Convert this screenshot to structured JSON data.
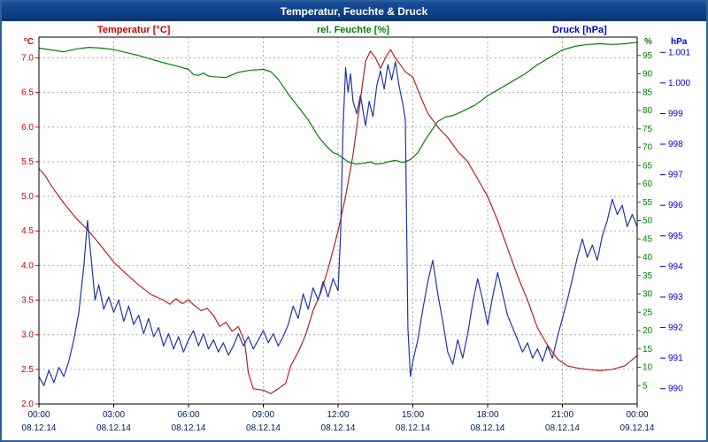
{
  "window": {
    "title": "Temperatur, Feuchte & Druck"
  },
  "chart_data": {
    "type": "line",
    "title": "Temperatur, Feuchte & Druck",
    "grid": true,
    "legend_position": "top",
    "axes": {
      "x": {
        "range": [
          0,
          24
        ],
        "tick_values": [
          0,
          3,
          6,
          9,
          12,
          15,
          18,
          21,
          24
        ],
        "tick_labels": [
          "00:00",
          "03:00",
          "06:00",
          "09:00",
          "12:00",
          "15:00",
          "18:00",
          "21:00",
          "00:00"
        ],
        "date_labels": [
          "08.12.14",
          "08.12.14",
          "08.12.14",
          "08.12.14",
          "08.12.14",
          "08.12.14",
          "08.12.14",
          "08.12.14",
          "09.12.14"
        ],
        "color": "#002060"
      },
      "temp": {
        "unit": "°C",
        "range": [
          2.0,
          7.3
        ],
        "tick_values": [
          7.0,
          6.5,
          6.0,
          5.5,
          5.0,
          4.5,
          4.0,
          3.5,
          3.0,
          2.5,
          2.0
        ],
        "tick_labels": [
          "7.0",
          "6.5",
          "6.0",
          "5.5",
          "5.0",
          "4.5",
          "4.0",
          "3.5",
          "3.0",
          "2.5",
          "2.0"
        ],
        "color": "#cc0000"
      },
      "hum": {
        "unit": "%",
        "range": [
          0,
          100
        ],
        "tick_values": [
          95,
          90,
          85,
          80,
          75,
          70,
          65,
          60,
          55,
          50,
          45,
          40,
          35,
          30,
          25,
          20,
          15,
          10,
          5
        ],
        "tick_labels": [
          "95",
          "90",
          "85",
          "80",
          "75",
          "70",
          "65",
          "60",
          "55",
          "50",
          "45",
          "40",
          "35",
          "30",
          "25",
          "20",
          "15",
          "10",
          "5"
        ],
        "color": "#008000"
      },
      "pres": {
        "unit": "hPa",
        "range": [
          989.5,
          1001.5
        ],
        "tick_values": [
          1001,
          1000,
          999,
          998,
          997,
          996,
          995,
          994,
          993,
          992,
          991,
          990
        ],
        "tick_labels": [
          "1.001",
          "1.000",
          "999",
          "998",
          "997",
          "996",
          "995",
          "994",
          "993",
          "992",
          "991",
          "990"
        ],
        "color": "#0000cc"
      }
    },
    "series": [
      {
        "name": "Temperatur [°C]",
        "axis": "temp",
        "color": "#b22222",
        "points": [
          [
            0,
            5.4
          ],
          [
            0.25,
            5.3
          ],
          [
            0.5,
            5.15
          ],
          [
            1,
            4.9
          ],
          [
            1.5,
            4.68
          ],
          [
            2,
            4.5
          ],
          [
            2.5,
            4.28
          ],
          [
            3,
            4.05
          ],
          [
            3.5,
            3.88
          ],
          [
            4,
            3.72
          ],
          [
            4.5,
            3.58
          ],
          [
            5,
            3.5
          ],
          [
            5.25,
            3.44
          ],
          [
            5.5,
            3.52
          ],
          [
            5.75,
            3.45
          ],
          [
            6,
            3.5
          ],
          [
            6.25,
            3.42
          ],
          [
            6.5,
            3.35
          ],
          [
            6.75,
            3.38
          ],
          [
            7,
            3.28
          ],
          [
            7.25,
            3.12
          ],
          [
            7.5,
            3.18
          ],
          [
            7.75,
            3.05
          ],
          [
            8,
            3.12
          ],
          [
            8.25,
            2.9
          ],
          [
            8.4,
            2.45
          ],
          [
            8.6,
            2.22
          ],
          [
            9,
            2.2
          ],
          [
            9.3,
            2.15
          ],
          [
            9.6,
            2.22
          ],
          [
            9.9,
            2.3
          ],
          [
            10.1,
            2.55
          ],
          [
            10.4,
            2.75
          ],
          [
            10.7,
            3.0
          ],
          [
            11,
            3.35
          ],
          [
            11.3,
            3.6
          ],
          [
            11.6,
            3.95
          ],
          [
            12,
            4.5
          ],
          [
            12.3,
            5.0
          ],
          [
            12.6,
            5.6
          ],
          [
            12.9,
            6.4
          ],
          [
            13.1,
            6.95
          ],
          [
            13.3,
            7.1
          ],
          [
            13.5,
            7.0
          ],
          [
            13.7,
            6.85
          ],
          [
            13.9,
            7.0
          ],
          [
            14.1,
            7.12
          ],
          [
            14.3,
            7.0
          ],
          [
            14.5,
            6.9
          ],
          [
            14.7,
            6.8
          ],
          [
            15,
            6.72
          ],
          [
            15.3,
            6.45
          ],
          [
            15.6,
            6.2
          ],
          [
            16,
            6.0
          ],
          [
            16.4,
            5.85
          ],
          [
            16.8,
            5.65
          ],
          [
            17.2,
            5.5
          ],
          [
            17.6,
            5.25
          ],
          [
            18,
            5.0
          ],
          [
            18.4,
            4.65
          ],
          [
            18.8,
            4.25
          ],
          [
            19.2,
            3.85
          ],
          [
            19.6,
            3.5
          ],
          [
            20,
            3.1
          ],
          [
            20.4,
            2.85
          ],
          [
            20.8,
            2.65
          ],
          [
            21.2,
            2.55
          ],
          [
            21.6,
            2.52
          ],
          [
            22,
            2.5
          ],
          [
            22.5,
            2.48
          ],
          [
            23,
            2.5
          ],
          [
            23.5,
            2.55
          ],
          [
            24,
            2.7
          ]
        ]
      },
      {
        "name": "rel. Feuchte [%]",
        "axis": "hum",
        "color": "#008000",
        "points": [
          [
            0,
            97
          ],
          [
            0.5,
            96.5
          ],
          [
            1,
            96
          ],
          [
            1.5,
            96.8
          ],
          [
            2,
            97.2
          ],
          [
            2.5,
            97
          ],
          [
            3,
            96.6
          ],
          [
            3.5,
            95.8
          ],
          [
            4,
            95
          ],
          [
            4.5,
            94
          ],
          [
            5,
            93
          ],
          [
            5.5,
            92.2
          ],
          [
            6,
            91.2
          ],
          [
            6.2,
            89.8
          ],
          [
            6.4,
            89.6
          ],
          [
            6.6,
            90.2
          ],
          [
            6.8,
            89.4
          ],
          [
            7,
            89.2
          ],
          [
            7.5,
            89
          ],
          [
            8,
            90.4
          ],
          [
            8.5,
            91
          ],
          [
            9,
            91.2
          ],
          [
            9.3,
            90.6
          ],
          [
            9.6,
            88.5
          ],
          [
            10,
            84.5
          ],
          [
            10.4,
            81
          ],
          [
            10.8,
            77.5
          ],
          [
            11.2,
            73
          ],
          [
            11.5,
            70.5
          ],
          [
            11.8,
            68.5
          ],
          [
            12,
            68
          ],
          [
            12.2,
            67
          ],
          [
            12.4,
            66
          ],
          [
            12.7,
            65.4
          ],
          [
            13,
            65.6
          ],
          [
            13.3,
            66
          ],
          [
            13.5,
            65.4
          ],
          [
            13.8,
            65.6
          ],
          [
            14,
            66
          ],
          [
            14.3,
            66.4
          ],
          [
            14.6,
            65.8
          ],
          [
            14.9,
            66.6
          ],
          [
            15.2,
            68.5
          ],
          [
            15.5,
            72
          ],
          [
            15.8,
            75
          ],
          [
            16,
            77
          ],
          [
            16.3,
            78.2
          ],
          [
            16.6,
            78.6
          ],
          [
            17,
            79.8
          ],
          [
            17.5,
            81.5
          ],
          [
            18,
            84
          ],
          [
            18.5,
            86
          ],
          [
            19,
            88
          ],
          [
            19.5,
            90
          ],
          [
            20,
            92.5
          ],
          [
            20.5,
            94.5
          ],
          [
            21,
            96.5
          ],
          [
            21.5,
            97.5
          ],
          [
            22,
            98
          ],
          [
            22.5,
            98.2
          ],
          [
            23,
            98
          ],
          [
            23.5,
            98.2
          ],
          [
            24,
            98.6
          ]
        ]
      },
      {
        "name": "Druck [hPa]",
        "axis": "pres",
        "color": "#2233aa",
        "points": [
          [
            0,
            990.4
          ],
          [
            0.2,
            990.1
          ],
          [
            0.4,
            990.6
          ],
          [
            0.6,
            990.2
          ],
          [
            0.8,
            990.7
          ],
          [
            1,
            990.4
          ],
          [
            1.2,
            990.9
          ],
          [
            1.4,
            991.6
          ],
          [
            1.6,
            992.5
          ],
          [
            1.8,
            994.0
          ],
          [
            1.95,
            995.5
          ],
          [
            2.1,
            994.2
          ],
          [
            2.25,
            992.9
          ],
          [
            2.4,
            993.4
          ],
          [
            2.6,
            992.6
          ],
          [
            2.8,
            993.0
          ],
          [
            3,
            992.5
          ],
          [
            3.2,
            992.9
          ],
          [
            3.4,
            992.2
          ],
          [
            3.6,
            992.7
          ],
          [
            3.8,
            992.1
          ],
          [
            4,
            992.4
          ],
          [
            4.2,
            991.8
          ],
          [
            4.4,
            992.3
          ],
          [
            4.6,
            991.7
          ],
          [
            4.8,
            992.0
          ],
          [
            5,
            991.4
          ],
          [
            5.2,
            991.8
          ],
          [
            5.4,
            991.3
          ],
          [
            5.6,
            991.7
          ],
          [
            5.8,
            991.2
          ],
          [
            6,
            991.6
          ],
          [
            6.2,
            991.9
          ],
          [
            6.4,
            991.4
          ],
          [
            6.6,
            991.8
          ],
          [
            6.8,
            991.3
          ],
          [
            7,
            991.6
          ],
          [
            7.2,
            991.2
          ],
          [
            7.4,
            991.5
          ],
          [
            7.6,
            991.1
          ],
          [
            7.8,
            991.4
          ],
          [
            8,
            991.8
          ],
          [
            8.2,
            991.4
          ],
          [
            8.4,
            991.7
          ],
          [
            8.6,
            991.3
          ],
          [
            8.8,
            991.6
          ],
          [
            9,
            991.9
          ],
          [
            9.2,
            991.5
          ],
          [
            9.4,
            991.8
          ],
          [
            9.6,
            991.4
          ],
          [
            9.8,
            991.7
          ],
          [
            10,
            992.1
          ],
          [
            10.2,
            992.7
          ],
          [
            10.4,
            992.3
          ],
          [
            10.6,
            993.1
          ],
          [
            10.8,
            992.6
          ],
          [
            11,
            993.3
          ],
          [
            11.2,
            992.9
          ],
          [
            11.4,
            993.5
          ],
          [
            11.6,
            993.0
          ],
          [
            11.8,
            993.6
          ],
          [
            12,
            993.2
          ],
          [
            12.1,
            995.0
          ],
          [
            12.2,
            998.5
          ],
          [
            12.3,
            1000.5
          ],
          [
            12.4,
            999.7
          ],
          [
            12.5,
            1000.3
          ],
          [
            12.6,
            999.4
          ],
          [
            12.75,
            999.0
          ],
          [
            12.9,
            999.6
          ],
          [
            13,
            999.1
          ],
          [
            13.1,
            998.6
          ],
          [
            13.25,
            999.4
          ],
          [
            13.4,
            998.9
          ],
          [
            13.55,
            999.9
          ],
          [
            13.7,
            1000.4
          ],
          [
            13.85,
            999.8
          ],
          [
            14,
            1000.6
          ],
          [
            14.15,
            1000.1
          ],
          [
            14.3,
            1000.7
          ],
          [
            14.45,
            999.9
          ],
          [
            14.6,
            999.3
          ],
          [
            14.7,
            998.8
          ],
          [
            14.8,
            992.0
          ],
          [
            14.9,
            990.4
          ],
          [
            15,
            990.9
          ],
          [
            15.2,
            991.6
          ],
          [
            15.4,
            992.6
          ],
          [
            15.6,
            993.5
          ],
          [
            15.8,
            994.2
          ],
          [
            16,
            993.1
          ],
          [
            16.2,
            992.2
          ],
          [
            16.4,
            991.2
          ],
          [
            16.6,
            990.8
          ],
          [
            16.8,
            991.6
          ],
          [
            17,
            991.0
          ],
          [
            17.2,
            991.8
          ],
          [
            17.4,
            992.8
          ],
          [
            17.6,
            993.6
          ],
          [
            17.8,
            992.9
          ],
          [
            18,
            992.1
          ],
          [
            18.2,
            993.0
          ],
          [
            18.4,
            993.8
          ],
          [
            18.6,
            993.1
          ],
          [
            18.8,
            992.4
          ],
          [
            19,
            992.0
          ],
          [
            19.2,
            991.6
          ],
          [
            19.4,
            991.2
          ],
          [
            19.6,
            991.5
          ],
          [
            19.8,
            991.0
          ],
          [
            20,
            991.3
          ],
          [
            20.2,
            990.9
          ],
          [
            20.4,
            991.4
          ],
          [
            20.6,
            991.0
          ],
          [
            20.8,
            991.7
          ],
          [
            21,
            992.3
          ],
          [
            21.2,
            992.9
          ],
          [
            21.4,
            993.6
          ],
          [
            21.6,
            994.3
          ],
          [
            21.8,
            994.9
          ],
          [
            22,
            994.3
          ],
          [
            22.2,
            994.7
          ],
          [
            22.4,
            994.2
          ],
          [
            22.6,
            995.0
          ],
          [
            22.8,
            995.5
          ],
          [
            23,
            996.2
          ],
          [
            23.2,
            995.7
          ],
          [
            23.4,
            996.0
          ],
          [
            23.6,
            995.3
          ],
          [
            23.8,
            995.7
          ],
          [
            24,
            995.3
          ]
        ]
      }
    ]
  }
}
